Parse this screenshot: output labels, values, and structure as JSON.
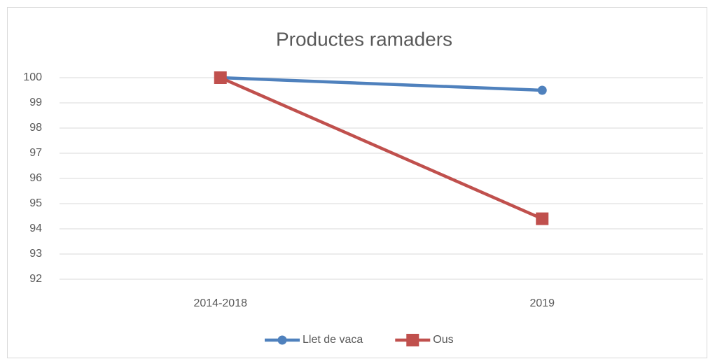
{
  "chart_data": {
    "type": "line",
    "title": "Productes ramaders",
    "categories": [
      "2014-2018",
      "2019"
    ],
    "series": [
      {
        "name": "Llet de vaca",
        "color": "#4f81bd",
        "marker": "circle",
        "values": [
          100,
          99.5
        ]
      },
      {
        "name": "Ous",
        "color": "#c0504d",
        "marker": "square",
        "values": [
          100,
          94.4
        ]
      }
    ],
    "ylim": [
      92,
      100
    ],
    "yticks": [
      92,
      93,
      94,
      95,
      96,
      97,
      98,
      99,
      100
    ],
    "grid": true,
    "legend": "bottom"
  }
}
